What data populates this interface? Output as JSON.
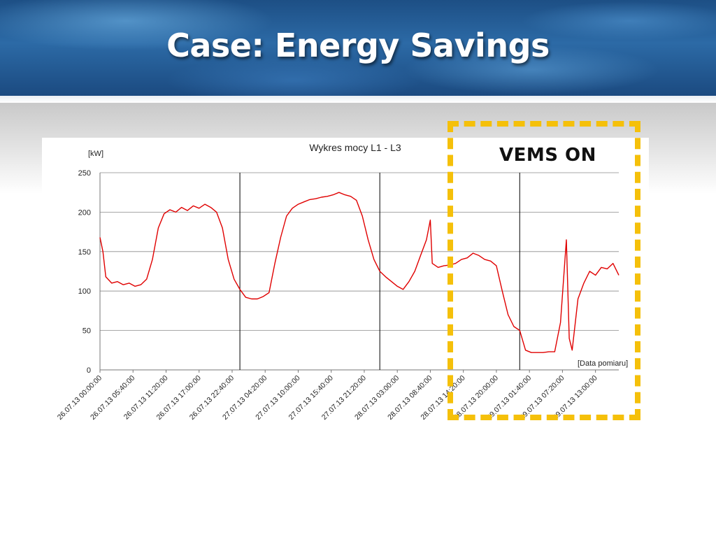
{
  "slide": {
    "title": "Case: Energy Savings",
    "annotation": "VEMS ON",
    "annotation_color": "#f5c00a"
  },
  "chart_data": {
    "type": "line",
    "title": "Wykres mocy L1 - L3",
    "ylabel": "[kW]",
    "xlabel": "[Data pomiaru]",
    "ylim": [
      0,
      250
    ],
    "yticks": [
      0,
      50,
      100,
      150,
      200,
      250
    ],
    "grid": true,
    "line_color": "#e00000",
    "x_start": "26.07.13 00:00:00",
    "x_end": "29.07.13 17:00:00",
    "xtick_labels": [
      "26.07.13 00:00:00",
      "26.07.13 05:40:00",
      "26.07.13 11:20:00",
      "26.07.13 17:00:00",
      "26.07.13 22:40:00",
      "27.07.13 04:20:00",
      "27.07.13 10:00:00",
      "27.07.13 15:40:00",
      "27.07.13 21:20:00",
      "28.07.13 03:00:00",
      "28.07.13 08:40:00",
      "28.07.13 14:20:00",
      "28.07.13 20:00:00",
      "29.07.13 01:40:00",
      "29.07.13 07:20:00",
      "29.07.13 13:00:00"
    ],
    "day_boundaries": [
      "27.07.13 00:00:00",
      "28.07.13 00:00:00",
      "29.07.13 00:00:00"
    ],
    "series": [
      {
        "values": [
          [
            "26.07.13 00:00:00",
            168
          ],
          [
            "26.07.13 00:30:00",
            150
          ],
          [
            "26.07.13 01:00:00",
            118
          ],
          [
            "26.07.13 02:00:00",
            110
          ],
          [
            "26.07.13 03:00:00",
            112
          ],
          [
            "26.07.13 04:00:00",
            108
          ],
          [
            "26.07.13 05:00:00",
            110
          ],
          [
            "26.07.13 06:00:00",
            106
          ],
          [
            "26.07.13 07:00:00",
            108
          ],
          [
            "26.07.13 08:00:00",
            115
          ],
          [
            "26.07.13 09:00:00",
            140
          ],
          [
            "26.07.13 10:00:00",
            180
          ],
          [
            "26.07.13 11:00:00",
            198
          ],
          [
            "26.07.13 12:00:00",
            203
          ],
          [
            "26.07.13 13:00:00",
            200
          ],
          [
            "26.07.13 14:00:00",
            206
          ],
          [
            "26.07.13 15:00:00",
            202
          ],
          [
            "26.07.13 16:00:00",
            208
          ],
          [
            "26.07.13 17:00:00",
            205
          ],
          [
            "26.07.13 18:00:00",
            210
          ],
          [
            "26.07.13 19:00:00",
            206
          ],
          [
            "26.07.13 20:00:00",
            200
          ],
          [
            "26.07.13 21:00:00",
            180
          ],
          [
            "26.07.13 22:00:00",
            140
          ],
          [
            "26.07.13 23:00:00",
            115
          ],
          [
            "27.07.13 00:00:00",
            102
          ],
          [
            "27.07.13 01:00:00",
            92
          ],
          [
            "27.07.13 02:00:00",
            90
          ],
          [
            "27.07.13 03:00:00",
            90
          ],
          [
            "27.07.13 04:00:00",
            93
          ],
          [
            "27.07.13 05:00:00",
            98
          ],
          [
            "27.07.13 06:00:00",
            135
          ],
          [
            "27.07.13 07:00:00",
            168
          ],
          [
            "27.07.13 08:00:00",
            195
          ],
          [
            "27.07.13 09:00:00",
            205
          ],
          [
            "27.07.13 10:00:00",
            210
          ],
          [
            "27.07.13 11:00:00",
            213
          ],
          [
            "27.07.13 12:00:00",
            216
          ],
          [
            "27.07.13 13:00:00",
            217
          ],
          [
            "27.07.13 14:00:00",
            219
          ],
          [
            "27.07.13 15:00:00",
            220
          ],
          [
            "27.07.13 16:00:00",
            222
          ],
          [
            "27.07.13 17:00:00",
            225
          ],
          [
            "27.07.13 18:00:00",
            222
          ],
          [
            "27.07.13 19:00:00",
            220
          ],
          [
            "27.07.13 20:00:00",
            215
          ],
          [
            "27.07.13 21:00:00",
            195
          ],
          [
            "27.07.13 22:00:00",
            165
          ],
          [
            "27.07.13 23:00:00",
            140
          ],
          [
            "28.07.13 00:00:00",
            125
          ],
          [
            "28.07.13 01:00:00",
            118
          ],
          [
            "28.07.13 02:00:00",
            112
          ],
          [
            "28.07.13 03:00:00",
            106
          ],
          [
            "28.07.13 04:00:00",
            102
          ],
          [
            "28.07.13 05:00:00",
            112
          ],
          [
            "28.07.13 06:00:00",
            125
          ],
          [
            "28.07.13 07:00:00",
            145
          ],
          [
            "28.07.13 08:00:00",
            165
          ],
          [
            "28.07.13 08:40:00",
            190
          ],
          [
            "28.07.13 09:00:00",
            135
          ],
          [
            "28.07.13 10:00:00",
            130
          ],
          [
            "28.07.13 11:00:00",
            132
          ],
          [
            "28.07.13 12:00:00",
            133
          ],
          [
            "28.07.13 13:00:00",
            135
          ],
          [
            "28.07.13 14:00:00",
            140
          ],
          [
            "28.07.13 15:00:00",
            142
          ],
          [
            "28.07.13 16:00:00",
            148
          ],
          [
            "28.07.13 17:00:00",
            145
          ],
          [
            "28.07.13 18:00:00",
            140
          ],
          [
            "28.07.13 19:00:00",
            138
          ],
          [
            "28.07.13 20:00:00",
            132
          ],
          [
            "28.07.13 21:00:00",
            100
          ],
          [
            "28.07.13 22:00:00",
            70
          ],
          [
            "28.07.13 23:00:00",
            55
          ],
          [
            "29.07.13 00:00:00",
            50
          ],
          [
            "29.07.13 01:00:00",
            25
          ],
          [
            "29.07.13 02:00:00",
            22
          ],
          [
            "29.07.13 03:00:00",
            22
          ],
          [
            "29.07.13 04:00:00",
            22
          ],
          [
            "29.07.13 05:00:00",
            23
          ],
          [
            "29.07.13 06:00:00",
            23
          ],
          [
            "29.07.13 07:00:00",
            60
          ],
          [
            "29.07.13 08:00:00",
            165
          ],
          [
            "29.07.13 08:30:00",
            40
          ],
          [
            "29.07.13 09:00:00",
            25
          ],
          [
            "29.07.13 10:00:00",
            90
          ],
          [
            "29.07.13 11:00:00",
            110
          ],
          [
            "29.07.13 12:00:00",
            125
          ],
          [
            "29.07.13 13:00:00",
            120
          ],
          [
            "29.07.13 14:00:00",
            130
          ],
          [
            "29.07.13 15:00:00",
            128
          ],
          [
            "29.07.13 16:00:00",
            135
          ],
          [
            "29.07.13 17:00:00",
            120
          ]
        ]
      }
    ]
  }
}
